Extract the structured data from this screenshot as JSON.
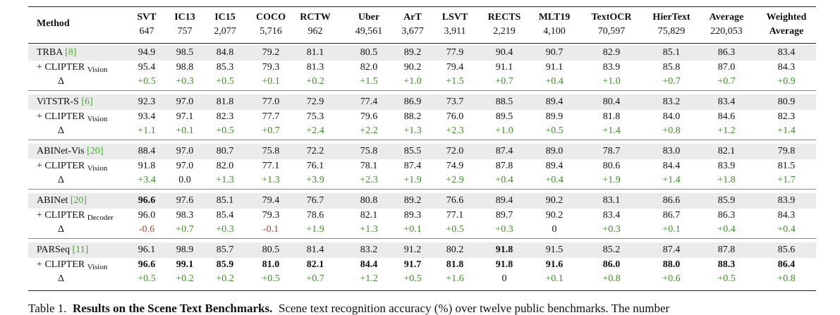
{
  "table": {
    "header": {
      "method": "Method",
      "columns": [
        {
          "name": "SVT",
          "count": "647"
        },
        {
          "name": "IC13",
          "count": "757"
        },
        {
          "name": "IC15",
          "count": "2,077"
        },
        {
          "name": "COCO",
          "count": "5,716"
        },
        {
          "name": "RCTW",
          "count": "962"
        },
        {
          "name": "Uber",
          "count": "49,561"
        },
        {
          "name": "ArT",
          "count": "3,677"
        },
        {
          "name": "LSVT",
          "count": "3,911"
        },
        {
          "name": "RECTS",
          "count": "2,219"
        },
        {
          "name": "MLT19",
          "count": "4,100"
        },
        {
          "name": "TextOCR",
          "count": "70,597"
        },
        {
          "name": "HierText",
          "count": "75,829"
        },
        {
          "name": "Average",
          "count": "220,053"
        },
        {
          "name": "Weighted",
          "count": "Average"
        }
      ]
    },
    "groups": [
      {
        "rows": [
          {
            "method": "TRBA",
            "ref": "[8]",
            "cells": [
              "94.9",
              "98.5",
              "84.8",
              "79.2",
              "81.1",
              "80.5",
              "89.2",
              "77.9",
              "90.4",
              "90.7",
              "82.9",
              "85.1",
              "86.3",
              "83.4"
            ],
            "bold": []
          },
          {
            "method": "+ CLIPTER",
            "sub": "Vision",
            "cells": [
              "95.4",
              "98.8",
              "85.3",
              "79.3",
              "81.3",
              "82.0",
              "90.2",
              "79.4",
              "91.1",
              "91.1",
              "83.9",
              "85.8",
              "87.0",
              "84.3"
            ],
            "bold": []
          },
          {
            "method": "Δ",
            "cells": [
              "+0.5",
              "+0.3",
              "+0.5",
              "+0.1",
              "+0.2",
              "+1.5",
              "+1.0",
              "+1.5",
              "+0.7",
              "+0.4",
              "+1.0",
              "+0.7",
              "+0.7",
              "+0.9"
            ],
            "bold": []
          }
        ]
      },
      {
        "rows": [
          {
            "method": "ViTSTR-S",
            "ref": "[6]",
            "cells": [
              "92.3",
              "97.0",
              "81.8",
              "77.0",
              "72.9",
              "77.4",
              "86.9",
              "73.7",
              "88.5",
              "89.4",
              "80.4",
              "83.2",
              "83.4",
              "80.9"
            ],
            "bold": []
          },
          {
            "method": "+ CLIPTER",
            "sub": "Vision",
            "cells": [
              "93.4",
              "97.1",
              "82.3",
              "77.7",
              "75.3",
              "79.6",
              "88.2",
              "76.0",
              "89.5",
              "89.9",
              "81.8",
              "84.0",
              "84.6",
              "82.3"
            ],
            "bold": []
          },
          {
            "method": "Δ",
            "cells": [
              "+1.1",
              "+0.1",
              "+0.5",
              "+0.7",
              "+2.4",
              "+2.2",
              "+1.3",
              "+2.3",
              "+1.0",
              "+0.5",
              "+1.4",
              "+0.8",
              "+1.2",
              "+1.4"
            ],
            "bold": []
          }
        ]
      },
      {
        "rows": [
          {
            "method": "ABINet-Vis",
            "ref": "[20]",
            "cells": [
              "88.4",
              "97.0",
              "80.7",
              "75.8",
              "72.2",
              "75.8",
              "85.5",
              "72.0",
              "87.4",
              "89.0",
              "78.7",
              "83.0",
              "82.1",
              "79.8"
            ],
            "bold": []
          },
          {
            "method": "+ CLIPTER",
            "sub": "Vision",
            "cells": [
              "91.8",
              "97.0",
              "82.0",
              "77.1",
              "76.1",
              "78.1",
              "87.4",
              "74.9",
              "87.8",
              "89.4",
              "80.6",
              "84.4",
              "83.9",
              "81.5"
            ],
            "bold": []
          },
          {
            "method": "Δ",
            "cells": [
              "+3.4",
              "0.0",
              "+1.3",
              "+1.3",
              "+3.9",
              "+2.3",
              "+1.9",
              "+2.9",
              "+0.4",
              "+0.4",
              "+1.9",
              "+1.4",
              "+1.8",
              "+1.7"
            ],
            "bold": []
          }
        ]
      },
      {
        "rows": [
          {
            "method": "ABINet",
            "ref": "[20]",
            "cells": [
              "96.6",
              "97.6",
              "85.1",
              "79.4",
              "76.7",
              "80.8",
              "89.2",
              "76.6",
              "89.4",
              "90.2",
              "83.1",
              "86.6",
              "85.9",
              "83.9"
            ],
            "bold": [
              0
            ]
          },
          {
            "method": "+ CLIPTER",
            "sub": "Decoder",
            "cells": [
              "96.0",
              "98.3",
              "85.4",
              "79.3",
              "78.6",
              "82.1",
              "89.3",
              "77.1",
              "89.7",
              "90.2",
              "83.4",
              "86.7",
              "86.3",
              "84.3"
            ],
            "bold": []
          },
          {
            "method": "Δ",
            "cells": [
              "-0.6",
              "+0.7",
              "+0.3",
              "-0.1",
              "+1.9",
              "+1.3",
              "+0.1",
              "+0.5",
              "+0.3",
              "0",
              "+0.3",
              "+0.1",
              "+0.4",
              "+0.4"
            ],
            "bold": []
          }
        ]
      },
      {
        "rows": [
          {
            "method": "PARSeq",
            "ref": "[11]",
            "cells": [
              "96.1",
              "98.9",
              "85.7",
              "80.5",
              "81.4",
              "83.2",
              "91.2",
              "80.2",
              "91.8",
              "91.5",
              "85.2",
              "87.4",
              "87.8",
              "85.6"
            ],
            "bold": [
              8
            ]
          },
          {
            "method": "+ CLIPTER",
            "sub": "Vision",
            "cells": [
              "96.6",
              "99.1",
              "85.9",
              "81.0",
              "82.1",
              "84.4",
              "91.7",
              "81.8",
              "91.8",
              "91.6",
              "86.0",
              "88.0",
              "88.3",
              "86.4"
            ],
            "bold": [
              0,
              1,
              2,
              3,
              4,
              5,
              6,
              7,
              8,
              9,
              10,
              11,
              12,
              13
            ]
          },
          {
            "method": "Δ",
            "cells": [
              "+0.5",
              "+0.2",
              "+0.2",
              "+0.5",
              "+0.7",
              "+1.2",
              "+0.5",
              "+1.6",
              "0",
              "+0.1",
              "+0.8",
              "+0.6",
              "+0.5",
              "+0.8"
            ],
            "bold": []
          }
        ]
      }
    ]
  },
  "caption": {
    "label": "Table 1.",
    "title": "Results on the Scene Text Benchmarks.",
    "text": "Scene text recognition accuracy (%) over twelve public benchmarks. The number"
  }
}
